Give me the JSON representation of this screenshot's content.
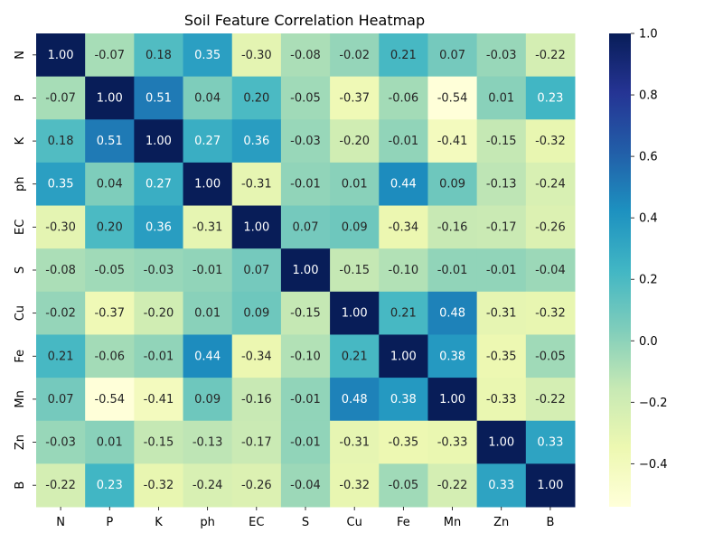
{
  "chart_data": {
    "type": "heatmap",
    "title": "Soil Feature Correlation Heatmap",
    "xlabel": "",
    "ylabel": "",
    "labels": [
      "N",
      "P",
      "K",
      "ph",
      "EC",
      "S",
      "Cu",
      "Fe",
      "Mn",
      "Zn",
      "B"
    ],
    "matrix": [
      [
        1.0,
        -0.07,
        0.18,
        0.35,
        -0.3,
        -0.08,
        -0.02,
        0.21,
        0.07,
        -0.03,
        -0.22
      ],
      [
        -0.07,
        1.0,
        0.51,
        0.04,
        0.2,
        -0.05,
        -0.37,
        -0.06,
        -0.54,
        0.01,
        0.23
      ],
      [
        0.18,
        0.51,
        1.0,
        0.27,
        0.36,
        -0.03,
        -0.2,
        -0.01,
        -0.41,
        -0.15,
        -0.32
      ],
      [
        0.35,
        0.04,
        0.27,
        1.0,
        -0.31,
        -0.01,
        0.01,
        0.44,
        0.09,
        -0.13,
        -0.24
      ],
      [
        -0.3,
        0.2,
        0.36,
        -0.31,
        1.0,
        0.07,
        0.09,
        -0.34,
        -0.16,
        -0.17,
        -0.26
      ],
      [
        -0.08,
        -0.05,
        -0.03,
        -0.01,
        0.07,
        1.0,
        -0.15,
        -0.1,
        -0.01,
        -0.01,
        -0.04
      ],
      [
        -0.02,
        -0.37,
        -0.2,
        0.01,
        0.09,
        -0.15,
        1.0,
        0.21,
        0.48,
        -0.31,
        -0.32
      ],
      [
        0.21,
        -0.06,
        -0.01,
        0.44,
        -0.34,
        -0.1,
        0.21,
        1.0,
        0.38,
        -0.35,
        -0.05
      ],
      [
        0.07,
        -0.54,
        -0.41,
        0.09,
        -0.16,
        -0.01,
        0.48,
        0.38,
        1.0,
        -0.33,
        -0.22
      ],
      [
        -0.03,
        0.01,
        -0.15,
        -0.13,
        -0.17,
        -0.01,
        -0.31,
        -0.35,
        -0.33,
        1.0,
        0.33
      ],
      [
        -0.22,
        0.23,
        -0.32,
        -0.24,
        -0.26,
        -0.04,
        -0.32,
        -0.05,
        -0.22,
        0.33,
        1.0
      ]
    ],
    "colormap": "YlGnBu",
    "value_range": [
      -0.54,
      1.0
    ],
    "colorbar": {
      "ticks": [
        1.0,
        0.8,
        0.6,
        0.4,
        0.2,
        0.0,
        -0.2,
        -0.4
      ],
      "tick_labels": [
        "1.0",
        "0.8",
        "0.6",
        "0.4",
        "0.2",
        "0.0",
        "−0.2",
        "−0.4"
      ]
    },
    "annotation_format": "0.00",
    "grid": false
  }
}
